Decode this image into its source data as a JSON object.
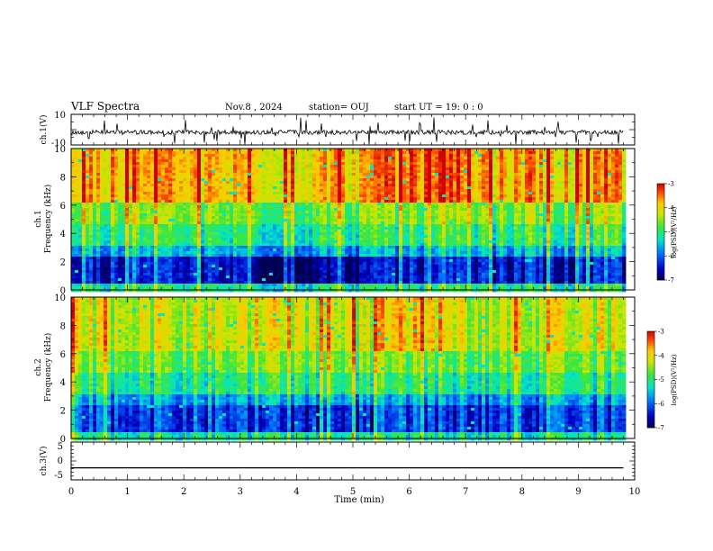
{
  "header": {
    "title": "VLF Spectra",
    "date": "Nov.8 , 2024",
    "station": "station= OUJ",
    "start": "start UT = 19: 0 : 0"
  },
  "chart_data": [
    {
      "type": "line",
      "name": "waveform-ch1",
      "ylabel": "ch.1(V)",
      "ylim": [
        -10,
        10
      ],
      "yticks": [
        "10",
        "-10"
      ]
    },
    {
      "type": "heatmap",
      "name": "spectrogram-ch1",
      "ylabel": "ch.1\nFrequency (kHz)",
      "ylabel_line1": "ch.1",
      "ylabel_line2": "Frequency (kHz)",
      "ylim": [
        0,
        10
      ],
      "yticks": [
        "0",
        "2",
        "4",
        "6",
        "8",
        "10"
      ],
      "colorbar": {
        "label": "log(PSD)(V²/Hz)",
        "range": [
          -7,
          -3
        ],
        "ticks": [
          "-3",
          "-4",
          "-5",
          "-6",
          "-7"
        ]
      }
    },
    {
      "type": "heatmap",
      "name": "spectrogram-ch2",
      "ylabel_line1": "ch.2",
      "ylabel_line2": "Frequency (kHz)",
      "ylim": [
        0,
        10
      ],
      "yticks": [
        "0",
        "2",
        "4",
        "6",
        "8",
        "10"
      ],
      "colorbar": {
        "label": "log(PSD)(V²/Hz)",
        "range": [
          -7,
          -3
        ],
        "ticks": [
          "-3",
          "-4",
          "-5",
          "-6",
          "-7"
        ]
      }
    },
    {
      "type": "line",
      "name": "waveform-ch3",
      "ylabel": "ch.3(V)",
      "ylim": [
        -5,
        5
      ],
      "yticks": [
        "5",
        "0",
        "-5"
      ],
      "level": -1.8
    }
  ],
  "xaxis": {
    "label": "Time (min)",
    "range": [
      0,
      10
    ],
    "ticks": [
      "0",
      "1",
      "2",
      "3",
      "4",
      "5",
      "6",
      "7",
      "8",
      "9",
      "10"
    ],
    "data_end": 9.8
  }
}
